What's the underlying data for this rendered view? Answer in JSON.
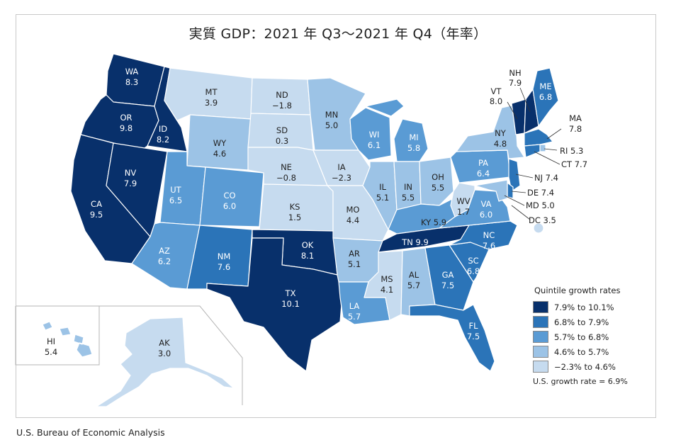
{
  "title": "実質 GDP：2021 年 Q3～2021 年 Q4（年率）",
  "source": "U.S. Bureau of Economic Analysis",
  "colors": {
    "q1": "#08306b",
    "q2": "#2b74b8",
    "q3": "#5a9bd4",
    "q4": "#9cc3e6",
    "q5": "#c6dbef",
    "label_dark": "#ffffff",
    "label_light": "#222222"
  },
  "legend": {
    "title": "Quintile growth rates",
    "items": [
      {
        "label": "7.9% to 10.1%",
        "color": "#08306b"
      },
      {
        "label": "6.8% to 7.9%",
        "color": "#2b74b8"
      },
      {
        "label": "5.7% to 6.8%",
        "color": "#5a9bd4"
      },
      {
        "label": "4.6% to 5.7%",
        "color": "#9cc3e6"
      },
      {
        "label": "−2.3% to 4.6%",
        "color": "#c6dbef"
      }
    ],
    "us_rate": "U.S. growth rate = 6.9%"
  },
  "states": {
    "WA": {
      "abbr": "WA",
      "value": "8.3",
      "quintile": 1
    },
    "OR": {
      "abbr": "OR",
      "value": "9.8",
      "quintile": 1
    },
    "CA": {
      "abbr": "CA",
      "value": "9.5",
      "quintile": 1
    },
    "ID": {
      "abbr": "ID",
      "value": "8.2",
      "quintile": 1
    },
    "NV": {
      "abbr": "NV",
      "value": "7.9",
      "quintile": 1
    },
    "MT": {
      "abbr": "MT",
      "value": "3.9",
      "quintile": 5
    },
    "WY": {
      "abbr": "WY",
      "value": "4.6",
      "quintile": 4
    },
    "UT": {
      "abbr": "UT",
      "value": "6.5",
      "quintile": 3
    },
    "CO": {
      "abbr": "CO",
      "value": "6.0",
      "quintile": 3
    },
    "AZ": {
      "abbr": "AZ",
      "value": "6.2",
      "quintile": 3
    },
    "NM": {
      "abbr": "NM",
      "value": "7.6",
      "quintile": 2
    },
    "ND": {
      "abbr": "ND",
      "value": "−1.8",
      "quintile": 5
    },
    "SD": {
      "abbr": "SD",
      "value": "0.3",
      "quintile": 5
    },
    "NE": {
      "abbr": "NE",
      "value": "−0.8",
      "quintile": 5
    },
    "KS": {
      "abbr": "KS",
      "value": "1.5",
      "quintile": 5
    },
    "OK": {
      "abbr": "OK",
      "value": "8.1",
      "quintile": 1
    },
    "TX": {
      "abbr": "TX",
      "value": "10.1",
      "quintile": 1
    },
    "MN": {
      "abbr": "MN",
      "value": "5.0",
      "quintile": 4
    },
    "IA": {
      "abbr": "IA",
      "value": "−2.3",
      "quintile": 5
    },
    "MO": {
      "abbr": "MO",
      "value": "4.4",
      "quintile": 5
    },
    "AR": {
      "abbr": "AR",
      "value": "5.1",
      "quintile": 4
    },
    "LA": {
      "abbr": "LA",
      "value": "5.7",
      "quintile": 3
    },
    "WI": {
      "abbr": "WI",
      "value": "6.1",
      "quintile": 3
    },
    "IL": {
      "abbr": "IL",
      "value": "5.1",
      "quintile": 4
    },
    "MI": {
      "abbr": "MI",
      "value": "5.8",
      "quintile": 3
    },
    "IN": {
      "abbr": "IN",
      "value": "5.5",
      "quintile": 4
    },
    "OH": {
      "abbr": "OH",
      "value": "5.5",
      "quintile": 4
    },
    "KY": {
      "abbr": "KY",
      "value": "5.9",
      "quintile": 3
    },
    "TN": {
      "abbr": "TN",
      "value": "9.9",
      "quintile": 1
    },
    "MS": {
      "abbr": "MS",
      "value": "4.1",
      "quintile": 5
    },
    "AL": {
      "abbr": "AL",
      "value": "5.7",
      "quintile": 4
    },
    "GA": {
      "abbr": "GA",
      "value": "7.5",
      "quintile": 2
    },
    "FL": {
      "abbr": "FL",
      "value": "7.5",
      "quintile": 2
    },
    "SC": {
      "abbr": "SC",
      "value": "6.8",
      "quintile": 2
    },
    "NC": {
      "abbr": "NC",
      "value": "7.6",
      "quintile": 2
    },
    "VA": {
      "abbr": "VA",
      "value": "6.0",
      "quintile": 3
    },
    "WV": {
      "abbr": "WV",
      "value": "1.7",
      "quintile": 5
    },
    "PA": {
      "abbr": "PA",
      "value": "6.4",
      "quintile": 3
    },
    "NY": {
      "abbr": "NY",
      "value": "4.8",
      "quintile": 4
    },
    "VT": {
      "abbr": "VT",
      "value": "8.0",
      "quintile": 1
    },
    "NH": {
      "abbr": "NH",
      "value": "7.9",
      "quintile": 1
    },
    "ME": {
      "abbr": "ME",
      "value": "6.8",
      "quintile": 2
    },
    "MA": {
      "abbr": "MA",
      "value": "7.8",
      "quintile": 2
    },
    "RI": {
      "abbr": "RI",
      "value": "5.3",
      "quintile": 4
    },
    "CT": {
      "abbr": "CT",
      "value": "7.7",
      "quintile": 2
    },
    "NJ": {
      "abbr": "NJ",
      "value": "7.4",
      "quintile": 2
    },
    "DE": {
      "abbr": "DE",
      "value": "7.4",
      "quintile": 2
    },
    "MD": {
      "abbr": "MD",
      "value": "5.0",
      "quintile": 4
    },
    "DC": {
      "abbr": "DC",
      "value": "3.5",
      "quintile": 5
    },
    "HI": {
      "abbr": "HI",
      "value": "5.4",
      "quintile": 4
    },
    "AK": {
      "abbr": "AK",
      "value": "3.0",
      "quintile": 5
    }
  }
}
